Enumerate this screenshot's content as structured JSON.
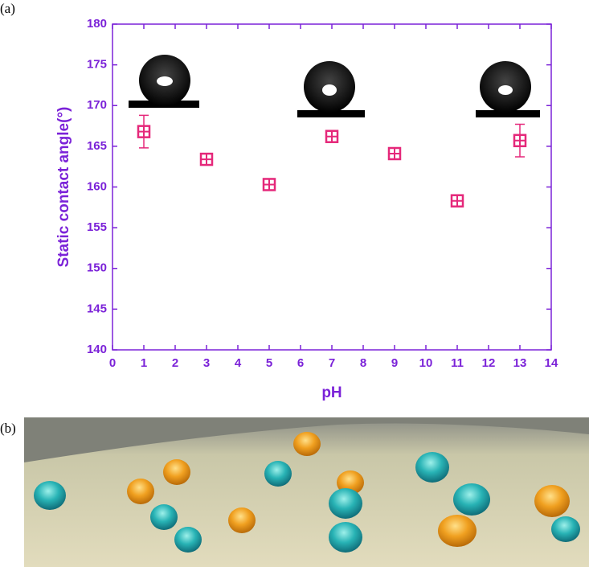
{
  "panel_labels": [
    "(a)",
    "(b)"
  ],
  "chart_data": {
    "type": "scatter",
    "x_label": "pH",
    "y_label": "Static contact angle(°)",
    "x": [
      1,
      3,
      5,
      7,
      9,
      11,
      13
    ],
    "values": [
      166.8,
      163.4,
      160.3,
      166.2,
      164.1,
      158.3,
      165.7
    ],
    "errors": [
      2.0,
      0.6,
      0.6,
      0.6,
      0.6,
      0.6,
      2.0
    ],
    "color": "#e5287a",
    "axis_color": "#7b22d8",
    "xlim": [
      0,
      14
    ],
    "xticks": [
      0,
      1,
      2,
      3,
      4,
      5,
      6,
      7,
      8,
      9,
      10,
      11,
      12,
      13,
      14
    ],
    "ylim": [
      140,
      180
    ],
    "yticks": [
      140,
      145,
      150,
      155,
      160,
      165,
      170,
      175,
      180
    ]
  }
}
